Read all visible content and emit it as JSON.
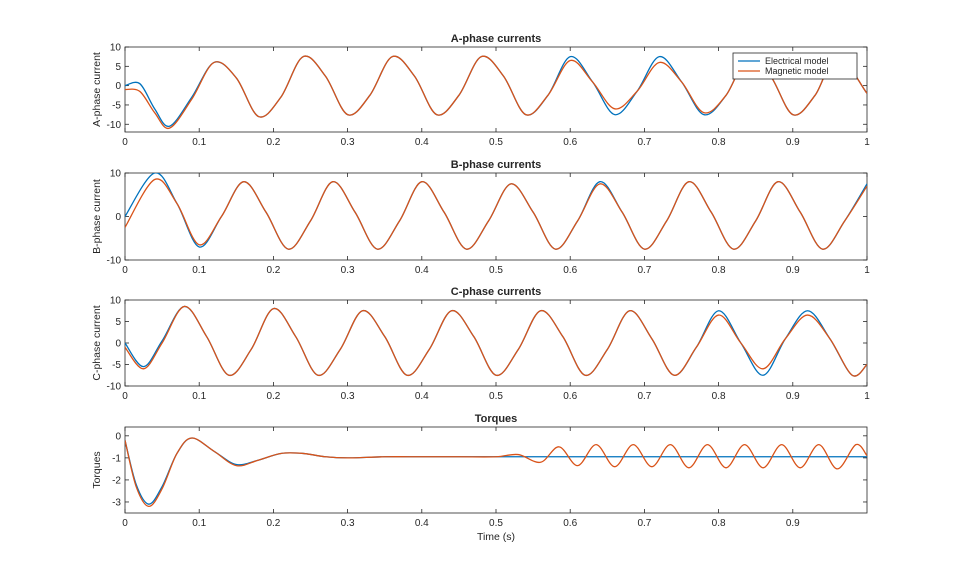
{
  "colors": {
    "electrical": "#0072BD",
    "magnetic": "#D95319",
    "axis": "#262626"
  },
  "chart_data": [
    {
      "type": "line",
      "title": "A-phase currents",
      "ylabel": "A-phase current",
      "xlabel": "",
      "xlim": [
        0,
        1
      ],
      "ylim": [
        -12,
        10
      ],
      "xticks": [
        "0",
        "0.1",
        "0.2",
        "0.3",
        "0.4",
        "0.5",
        "0.6",
        "0.7",
        "0.8",
        "0.9",
        "1"
      ],
      "yticks": [
        10,
        5,
        0,
        -5,
        -10
      ],
      "legend": {
        "placement": "top-right",
        "entries": [
          "Electrical model",
          "Magnetic model"
        ]
      },
      "series": [
        {
          "name": "Electrical model",
          "x": [
            0,
            0.02,
            0.04,
            0.06,
            0.09,
            0.12,
            0.15,
            0.18,
            0.21,
            0.24,
            0.27,
            0.3,
            0.33,
            0.36,
            0.39,
            0.42,
            0.45,
            0.48,
            0.51,
            0.54,
            0.57,
            0.6,
            0.63,
            0.66,
            0.69,
            0.72,
            0.75,
            0.78,
            0.81,
            0.84,
            0.87,
            0.9,
            0.93,
            0.96,
            1.0
          ],
          "y": [
            0,
            0.5,
            -6,
            -10.5,
            -3,
            6,
            2,
            -8,
            -3,
            7.5,
            2.5,
            -7.5,
            -2.5,
            7.5,
            2.5,
            -7.5,
            -2.5,
            7.5,
            2.5,
            -7.5,
            -2.5,
            7.5,
            1,
            -7.5,
            -1.5,
            7.5,
            1,
            -7.5,
            -2.5,
            7.5,
            2.5,
            -7.5,
            -2.5,
            7.5,
            -2
          ]
        },
        {
          "name": "Magnetic model",
          "x": [
            0,
            0.02,
            0.04,
            0.06,
            0.09,
            0.12,
            0.15,
            0.18,
            0.21,
            0.24,
            0.27,
            0.3,
            0.33,
            0.36,
            0.39,
            0.42,
            0.45,
            0.48,
            0.51,
            0.54,
            0.57,
            0.6,
            0.63,
            0.66,
            0.69,
            0.72,
            0.75,
            0.78,
            0.81,
            0.84,
            0.87,
            0.9,
            0.93,
            0.96,
            1.0
          ],
          "y": [
            -1,
            -1.5,
            -7,
            -11,
            -3.5,
            6,
            2,
            -8,
            -3,
            7.5,
            2.5,
            -7.5,
            -2.5,
            7.5,
            2.5,
            -7.5,
            -2.5,
            7.5,
            2.5,
            -7.5,
            -2.5,
            6.5,
            1,
            -6,
            -1.5,
            6,
            1,
            -7,
            -2.5,
            7.5,
            2.5,
            -7.5,
            -2.5,
            7.5,
            -2
          ]
        }
      ]
    },
    {
      "type": "line",
      "title": "B-phase currents",
      "ylabel": "B-phase current",
      "xlabel": "",
      "xlim": [
        0,
        1
      ],
      "ylim": [
        -10,
        10
      ],
      "xticks": [
        "0",
        "0.1",
        "0.2",
        "0.3",
        "0.4",
        "0.5",
        "0.6",
        "0.7",
        "0.8",
        "0.9",
        "1"
      ],
      "yticks": [
        10,
        0,
        -10
      ],
      "series": [
        {
          "name": "Electrical model",
          "x": [
            0,
            0.04,
            0.07,
            0.1,
            0.13,
            0.16,
            0.19,
            0.22,
            0.25,
            0.28,
            0.31,
            0.34,
            0.37,
            0.4,
            0.43,
            0.46,
            0.49,
            0.52,
            0.55,
            0.58,
            0.61,
            0.64,
            0.67,
            0.7,
            0.73,
            0.76,
            0.79,
            0.82,
            0.85,
            0.88,
            0.91,
            0.94,
            0.97,
            1.0
          ],
          "y": [
            0,
            10,
            3,
            -7,
            0,
            8,
            1,
            -7.5,
            -1,
            8,
            1,
            -7.5,
            -1,
            8,
            1,
            -7.5,
            -1,
            7.5,
            1,
            -7.5,
            -1,
            8,
            1,
            -7.5,
            -1,
            8,
            1,
            -7.5,
            -1,
            8,
            1,
            -7.5,
            -1,
            7.5
          ]
        },
        {
          "name": "Magnetic model",
          "x": [
            0,
            0.04,
            0.07,
            0.1,
            0.13,
            0.16,
            0.19,
            0.22,
            0.25,
            0.28,
            0.31,
            0.34,
            0.37,
            0.4,
            0.43,
            0.46,
            0.49,
            0.52,
            0.55,
            0.58,
            0.61,
            0.64,
            0.67,
            0.7,
            0.73,
            0.76,
            0.79,
            0.82,
            0.85,
            0.88,
            0.91,
            0.94,
            0.97,
            1.0
          ],
          "y": [
            -2.5,
            8.5,
            3,
            -6.5,
            0,
            8,
            1,
            -7.5,
            -1,
            8,
            1,
            -7.5,
            -1,
            8,
            1,
            -7.5,
            -1,
            7.5,
            1,
            -7.5,
            -1,
            7.5,
            1,
            -7.5,
            -1,
            8,
            1,
            -7.5,
            -1,
            8,
            1,
            -7.5,
            -1,
            7
          ]
        }
      ]
    },
    {
      "type": "line",
      "title": "C-phase currents",
      "ylabel": "C-phase current",
      "xlabel": "",
      "xlim": [
        0,
        1
      ],
      "ylim": [
        -10,
        10
      ],
      "xticks": [
        "0",
        "0.1",
        "0.2",
        "0.3",
        "0.4",
        "0.5",
        "0.6",
        "0.7",
        "0.8",
        "0.9",
        "1"
      ],
      "yticks": [
        10,
        5,
        0,
        -5,
        -10
      ],
      "series": [
        {
          "name": "Electrical model",
          "x": [
            0,
            0.025,
            0.05,
            0.08,
            0.11,
            0.14,
            0.17,
            0.2,
            0.23,
            0.26,
            0.29,
            0.32,
            0.35,
            0.38,
            0.41,
            0.44,
            0.47,
            0.5,
            0.53,
            0.56,
            0.59,
            0.62,
            0.65,
            0.68,
            0.71,
            0.74,
            0.77,
            0.8,
            0.83,
            0.86,
            0.89,
            0.92,
            0.95,
            0.98,
            1.0
          ],
          "y": [
            0,
            -5.5,
            0.5,
            8.5,
            1.5,
            -7.5,
            -1.5,
            8,
            1.5,
            -7.5,
            -1.5,
            7.5,
            1.5,
            -7.5,
            -1.5,
            7.5,
            1.5,
            -7.5,
            -1.5,
            7.5,
            1.5,
            -7.5,
            -1.5,
            7.5,
            1,
            -7.5,
            -1,
            7.5,
            0,
            -7.5,
            1,
            7.5,
            1,
            -7.5,
            -5
          ]
        },
        {
          "name": "Magnetic model",
          "x": [
            0,
            0.025,
            0.05,
            0.08,
            0.11,
            0.14,
            0.17,
            0.2,
            0.23,
            0.26,
            0.29,
            0.32,
            0.35,
            0.38,
            0.41,
            0.44,
            0.47,
            0.5,
            0.53,
            0.56,
            0.59,
            0.62,
            0.65,
            0.68,
            0.71,
            0.74,
            0.77,
            0.8,
            0.83,
            0.86,
            0.89,
            0.92,
            0.95,
            0.98,
            1.0
          ],
          "y": [
            -1,
            -6,
            0,
            8.5,
            1.5,
            -7.5,
            -1.5,
            8,
            1.5,
            -7.5,
            -1.5,
            7.5,
            1.5,
            -7.5,
            -1.5,
            7.5,
            1.5,
            -7.5,
            -1.5,
            7.5,
            1.5,
            -7.5,
            -1.5,
            7.5,
            1,
            -7.5,
            -1,
            6.5,
            0,
            -6,
            1,
            6.5,
            1,
            -7.5,
            -5
          ]
        }
      ]
    },
    {
      "type": "line",
      "title": "Torques",
      "ylabel": "Torques",
      "xlabel": "Time (s)",
      "xlim": [
        0,
        1
      ],
      "ylim": [
        -3.5,
        0.4
      ],
      "xticks": [
        "0",
        "0.1",
        "0.2",
        "0.3",
        "0.4",
        "0.5",
        "0.6",
        "0.7",
        "0.8",
        "0.9"
      ],
      "yticks": [
        0,
        -1,
        -2,
        -3
      ],
      "series": [
        {
          "name": "Electrical model",
          "x": [
            0,
            0.015,
            0.032,
            0.05,
            0.07,
            0.09,
            0.12,
            0.15,
            0.18,
            0.21,
            0.24,
            0.27,
            0.3,
            0.35,
            0.4,
            0.45,
            0.5,
            0.55,
            0.6,
            0.65,
            0.7,
            0.75,
            0.8,
            0.85,
            0.9,
            0.95,
            1.0
          ],
          "y": [
            -0.2,
            -2.2,
            -3.1,
            -2.3,
            -0.8,
            -0.1,
            -0.7,
            -1.3,
            -1.1,
            -0.8,
            -0.8,
            -0.95,
            -1.0,
            -0.95,
            -0.95,
            -0.95,
            -0.95,
            -0.95,
            -0.95,
            -0.95,
            -0.95,
            -0.95,
            -0.95,
            -0.95,
            -0.95,
            -0.95,
            -0.95
          ]
        },
        {
          "name": "Magnetic model",
          "x": [
            0,
            0.015,
            0.032,
            0.05,
            0.07,
            0.09,
            0.12,
            0.15,
            0.18,
            0.21,
            0.24,
            0.27,
            0.3,
            0.35,
            0.4,
            0.45,
            0.5,
            0.53,
            0.56,
            0.585,
            0.61,
            0.635,
            0.66,
            0.685,
            0.71,
            0.735,
            0.76,
            0.785,
            0.81,
            0.835,
            0.86,
            0.885,
            0.91,
            0.935,
            0.96,
            0.985,
            1.0
          ],
          "y": [
            -0.2,
            -2.3,
            -3.2,
            -2.4,
            -0.8,
            -0.1,
            -0.7,
            -1.35,
            -1.1,
            -0.8,
            -0.8,
            -0.95,
            -1.0,
            -0.95,
            -0.95,
            -0.95,
            -0.95,
            -0.85,
            -1.2,
            -0.5,
            -1.35,
            -0.4,
            -1.4,
            -0.4,
            -1.4,
            -0.4,
            -1.45,
            -0.4,
            -1.45,
            -0.4,
            -1.45,
            -0.4,
            -1.45,
            -0.4,
            -1.5,
            -0.4,
            -0.9
          ]
        }
      ]
    }
  ]
}
